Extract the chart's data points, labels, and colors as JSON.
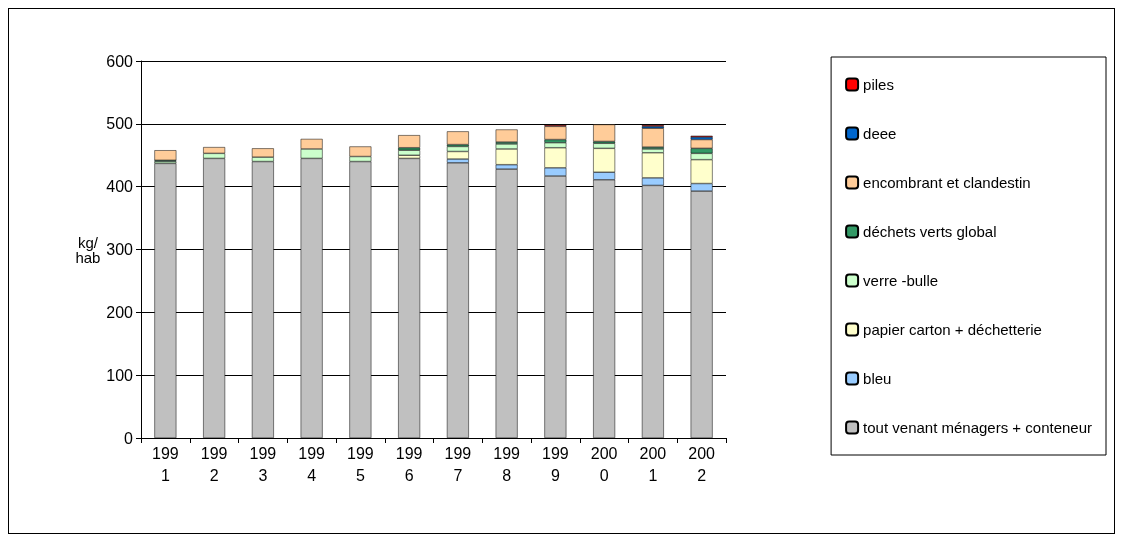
{
  "chart_data": {
    "type": "bar",
    "stacked": true,
    "ylabel": "kg/\nhab",
    "categories": [
      "1991",
      "1992",
      "1993",
      "1994",
      "1995",
      "1996",
      "1997",
      "1998",
      "1999",
      "2000",
      "2001",
      "2002"
    ],
    "series": [
      {
        "name": "tout venant ménagers + conteneur",
        "color": "#c0c0c0",
        "values": [
          437,
          445,
          440,
          445,
          440,
          445,
          438,
          428,
          417,
          411,
          402,
          393
        ]
      },
      {
        "name": "bleu",
        "color": "#99ccff",
        "values": [
          null,
          null,
          null,
          null,
          null,
          null,
          6,
          7,
          13,
          12,
          12,
          12
        ]
      },
      {
        "name": "papier carton + déchetterie",
        "color": "#ffffcc",
        "values": [
          null,
          null,
          null,
          null,
          null,
          5,
          12,
          25,
          32,
          38,
          40,
          38
        ]
      },
      {
        "name": "verre -bulle",
        "color": "#ccffcc",
        "values": [
          3,
          8,
          7,
          15,
          8,
          8,
          8,
          8,
          8,
          8,
          6,
          10
        ]
      },
      {
        "name": "déchets verts global",
        "color": "#339966",
        "values": [
          2,
          null,
          null,
          null,
          null,
          4,
          3,
          3,
          5,
          3,
          3,
          8
        ]
      },
      {
        "name": "encombrant et clandestin",
        "color": "#ffcc99",
        "values": [
          16,
          10,
          14,
          16,
          16,
          20,
          21,
          20,
          21,
          27,
          30,
          14
        ]
      },
      {
        "name": "deee",
        "color": "#0066cc",
        "values": [
          null,
          null,
          null,
          null,
          null,
          null,
          null,
          null,
          null,
          null,
          3,
          4
        ]
      },
      {
        "name": "piles",
        "color": "#ff0000",
        "values": [
          null,
          null,
          null,
          null,
          null,
          null,
          null,
          null,
          2,
          null,
          2,
          2
        ]
      }
    ],
    "ylim": [
      0,
      600
    ],
    "yticks": [
      0,
      100,
      200,
      300,
      400,
      500,
      600
    ],
    "grid": "y",
    "legend": "right"
  }
}
